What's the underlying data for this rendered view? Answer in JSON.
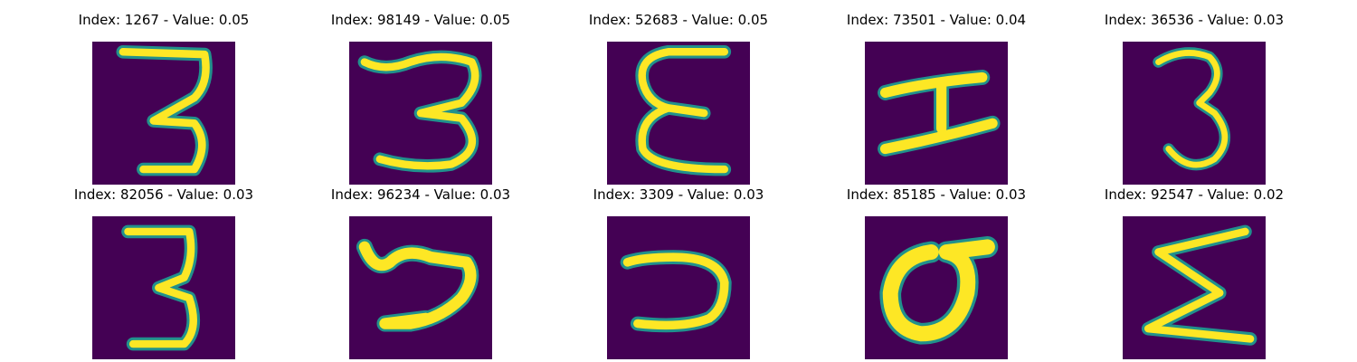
{
  "colors": {
    "background": "#440154",
    "stroke": "#fde725",
    "stroke_edge": "#21918c",
    "stroke_mid": "#5ec962"
  },
  "panels": [
    {
      "title": "Index: 1267 - Value: 0.05",
      "glyph": "3-straight-top"
    },
    {
      "title": "Index: 98149 - Value: 0.05",
      "glyph": "3-wide"
    },
    {
      "title": "Index: 52683 - Value: 0.05",
      "glyph": "E-rounded"
    },
    {
      "title": "Index: 73501 - Value: 0.04",
      "glyph": "I-serif"
    },
    {
      "title": "Index: 36536 - Value: 0.03",
      "glyph": "3-thin"
    },
    {
      "title": "Index: 82056 - Value: 0.03",
      "glyph": "3-straight"
    },
    {
      "title": "Index: 96234 - Value: 0.03",
      "glyph": "curl"
    },
    {
      "title": "Index: 3309 - Value: 0.03",
      "glyph": "reversed-c"
    },
    {
      "title": "Index: 85185 - Value: 0.03",
      "glyph": "sigma-o"
    },
    {
      "title": "Index: 92547 - Value: 0.02",
      "glyph": "sigma"
    }
  ]
}
